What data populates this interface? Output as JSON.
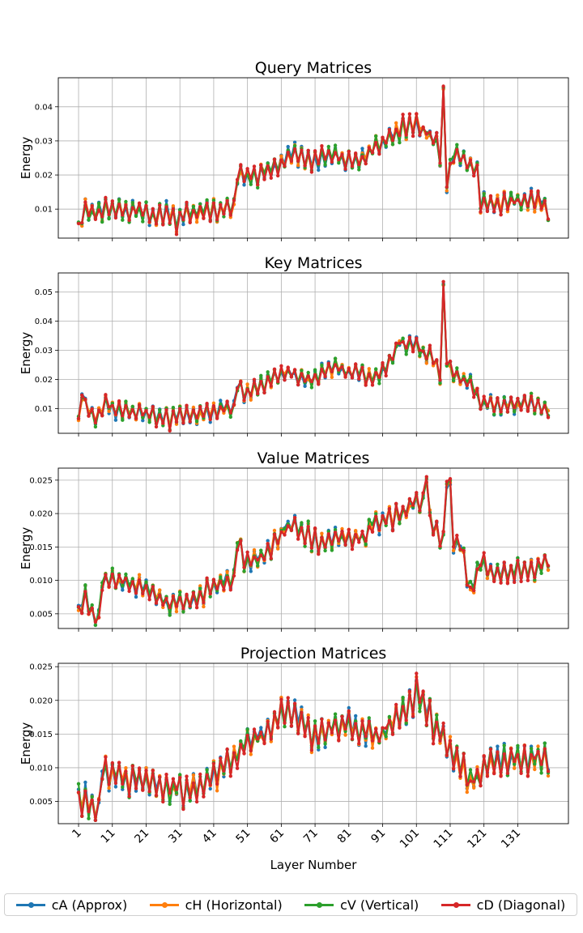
{
  "chart_data": [
    {
      "type": "line",
      "title": "Query Matrices",
      "ylabel": "Energy",
      "xlabel": "",
      "ylim": [
        0.0015,
        0.0485
      ],
      "yticks": [
        "0.01",
        "0.02",
        "0.03",
        "0.04"
      ],
      "ytick_values": [
        0.01,
        0.02,
        0.03,
        0.04
      ],
      "anchors": [
        [
          1,
          0.006
        ],
        [
          3,
          0.0105
        ],
        [
          5,
          0.008
        ],
        [
          8,
          0.0098
        ],
        [
          12,
          0.0095
        ],
        [
          20,
          0.009
        ],
        [
          24,
          0.0075
        ],
        [
          27,
          0.009
        ],
        [
          30,
          0.0065
        ],
        [
          33,
          0.0085
        ],
        [
          40,
          0.0095
        ],
        [
          47,
          0.0105
        ],
        [
          48,
          0.019
        ],
        [
          52,
          0.0195
        ],
        [
          60,
          0.0225
        ],
        [
          64,
          0.026
        ],
        [
          70,
          0.024
        ],
        [
          76,
          0.026
        ],
        [
          80,
          0.024
        ],
        [
          84,
          0.025
        ],
        [
          90,
          0.028
        ],
        [
          95,
          0.033
        ],
        [
          100,
          0.035
        ],
        [
          104,
          0.033
        ],
        [
          107,
          0.029
        ],
        [
          108,
          0.025
        ],
        [
          109,
          0.038
        ],
        [
          110,
          0.018
        ],
        [
          112,
          0.026
        ],
        [
          119,
          0.022
        ],
        [
          120,
          0.012
        ],
        [
          130,
          0.0125
        ],
        [
          137,
          0.0125
        ],
        [
          140,
          0.01
        ]
      ],
      "amplitude": 0.003,
      "spikes": [
        [
          109,
          0.046
        ]
      ],
      "series": [
        {
          "name": "cA (Approx)",
          "color": "#1f77b4"
        },
        {
          "name": "cH (Horizontal)",
          "color": "#ff7f0e"
        },
        {
          "name": "cV (Vertical)",
          "color": "#2ca02c"
        },
        {
          "name": "cD (Diagonal)",
          "color": "#d62728"
        }
      ]
    },
    {
      "type": "line",
      "title": "Key Matrices",
      "ylabel": "Energy",
      "xlabel": "",
      "ylim": [
        0.0015,
        0.0565
      ],
      "yticks": [
        "0.01",
        "0.02",
        "0.03",
        "0.04",
        "0.05"
      ],
      "ytick_values": [
        0.01,
        0.02,
        0.03,
        0.04,
        0.05
      ],
      "anchors": [
        [
          1,
          0.006
        ],
        [
          2,
          0.015
        ],
        [
          4,
          0.009
        ],
        [
          6,
          0.006
        ],
        [
          9,
          0.0115
        ],
        [
          13,
          0.009
        ],
        [
          20,
          0.009
        ],
        [
          28,
          0.006
        ],
        [
          32,
          0.008
        ],
        [
          40,
          0.009
        ],
        [
          47,
          0.01
        ],
        [
          48,
          0.018
        ],
        [
          50,
          0.016
        ],
        [
          56,
          0.018
        ],
        [
          62,
          0.022
        ],
        [
          70,
          0.02
        ],
        [
          76,
          0.024
        ],
        [
          84,
          0.022
        ],
        [
          88,
          0.02
        ],
        [
          92,
          0.024
        ],
        [
          96,
          0.033
        ],
        [
          102,
          0.03
        ],
        [
          106,
          0.028
        ],
        [
          108,
          0.022
        ],
        [
          109,
          0.028
        ],
        [
          112,
          0.022
        ],
        [
          118,
          0.018
        ],
        [
          120,
          0.011
        ],
        [
          130,
          0.011
        ],
        [
          135,
          0.012
        ],
        [
          140,
          0.009
        ]
      ],
      "amplitude": 0.003,
      "spikes": [
        [
          109,
          0.0535
        ]
      ],
      "series": [
        {
          "name": "cA (Approx)",
          "color": "#1f77b4"
        },
        {
          "name": "cH (Horizontal)",
          "color": "#ff7f0e"
        },
        {
          "name": "cV (Vertical)",
          "color": "#2ca02c"
        },
        {
          "name": "cD (Diagonal)",
          "color": "#d62728"
        }
      ]
    },
    {
      "type": "line",
      "title": "Value Matrices",
      "ylabel": "Energy",
      "xlabel": "",
      "ylim": [
        0.0028,
        0.0268
      ],
      "yticks": [
        "0.005",
        "0.010",
        "0.015",
        "0.020",
        "0.025"
      ],
      "ytick_values": [
        0.005,
        0.01,
        0.015,
        0.02,
        0.025
      ],
      "anchors": [
        [
          1,
          0.0055
        ],
        [
          3,
          0.0075
        ],
        [
          5,
          0.005
        ],
        [
          7,
          0.0045
        ],
        [
          8,
          0.0105
        ],
        [
          12,
          0.0098
        ],
        [
          20,
          0.0092
        ],
        [
          28,
          0.0065
        ],
        [
          35,
          0.007
        ],
        [
          40,
          0.0088
        ],
        [
          47,
          0.0105
        ],
        [
          48,
          0.016
        ],
        [
          50,
          0.013
        ],
        [
          56,
          0.0135
        ],
        [
          62,
          0.018
        ],
        [
          66,
          0.018
        ],
        [
          72,
          0.0155
        ],
        [
          80,
          0.0165
        ],
        [
          86,
          0.016
        ],
        [
          88,
          0.0185
        ],
        [
          95,
          0.0195
        ],
        [
          100,
          0.0215
        ],
        [
          103,
          0.022
        ],
        [
          106,
          0.018
        ],
        [
          108,
          0.016
        ],
        [
          110,
          0.0165
        ],
        [
          114,
          0.015
        ],
        [
          117,
          0.0085
        ],
        [
          120,
          0.0125
        ],
        [
          124,
          0.011
        ],
        [
          130,
          0.0115
        ],
        [
          137,
          0.012
        ],
        [
          140,
          0.0125
        ]
      ],
      "amplitude": 0.0016,
      "spikes": [
        [
          104,
          0.0255
        ],
        [
          110,
          0.0248
        ],
        [
          111,
          0.0252
        ]
      ],
      "series": [
        {
          "name": "cA (Approx)",
          "color": "#1f77b4"
        },
        {
          "name": "cH (Horizontal)",
          "color": "#ff7f0e"
        },
        {
          "name": "cV (Vertical)",
          "color": "#2ca02c"
        },
        {
          "name": "cD (Diagonal)",
          "color": "#d62728"
        }
      ]
    },
    {
      "type": "line",
      "title": "Projection Matrices",
      "ylabel": "Energy",
      "xlabel": "Layer Number",
      "ylim": [
        0.0017,
        0.0255
      ],
      "yticks": [
        "0.005",
        "0.010",
        "0.015",
        "0.020",
        "0.025"
      ],
      "ytick_values": [
        0.005,
        0.01,
        0.015,
        0.02,
        0.025
      ],
      "anchors": [
        [
          1,
          0.005
        ],
        [
          5,
          0.005
        ],
        [
          7,
          0.003
        ],
        [
          8,
          0.0095
        ],
        [
          14,
          0.0085
        ],
        [
          22,
          0.008
        ],
        [
          28,
          0.0065
        ],
        [
          33,
          0.007
        ],
        [
          40,
          0.008
        ],
        [
          44,
          0.0105
        ],
        [
          48,
          0.0125
        ],
        [
          54,
          0.0145
        ],
        [
          58,
          0.016
        ],
        [
          62,
          0.0185
        ],
        [
          66,
          0.018
        ],
        [
          70,
          0.0145
        ],
        [
          76,
          0.0155
        ],
        [
          80,
          0.0165
        ],
        [
          86,
          0.0155
        ],
        [
          88,
          0.0145
        ],
        [
          94,
          0.0165
        ],
        [
          98,
          0.0185
        ],
        [
          102,
          0.0205
        ],
        [
          106,
          0.0165
        ],
        [
          110,
          0.0135
        ],
        [
          114,
          0.01
        ],
        [
          117,
          0.0075
        ],
        [
          120,
          0.0095
        ],
        [
          124,
          0.011
        ],
        [
          132,
          0.0115
        ],
        [
          140,
          0.011
        ]
      ],
      "amplitude": 0.0022,
      "spikes": [
        [
          101,
          0.024
        ]
      ],
      "series": [
        {
          "name": "cA (Approx)",
          "color": "#1f77b4"
        },
        {
          "name": "cH (Horizontal)",
          "color": "#ff7f0e"
        },
        {
          "name": "cV (Vertical)",
          "color": "#2ca02c"
        },
        {
          "name": "cD (Diagonal)",
          "color": "#d62728"
        }
      ]
    }
  ],
  "x_axis": {
    "min": 1,
    "max": 140,
    "xlim": [
      -5,
      146
    ],
    "tick_values": [
      1,
      11,
      21,
      31,
      41,
      51,
      61,
      71,
      81,
      91,
      101,
      111,
      121,
      131
    ],
    "tick_labels": [
      "1",
      "11",
      "21",
      "31",
      "41",
      "51",
      "61",
      "71",
      "81",
      "91",
      "101",
      "111",
      "121",
      "131"
    ],
    "label": "Layer Number"
  },
  "legend": {
    "placement": "bottom",
    "entries": [
      {
        "label": "cA (Approx)",
        "color": "#1f77b4"
      },
      {
        "label": "cH (Horizontal)",
        "color": "#ff7f0e"
      },
      {
        "label": "cV (Vertical)",
        "color": "#2ca02c"
      },
      {
        "label": "cD (Diagonal)",
        "color": "#d62728"
      }
    ]
  }
}
